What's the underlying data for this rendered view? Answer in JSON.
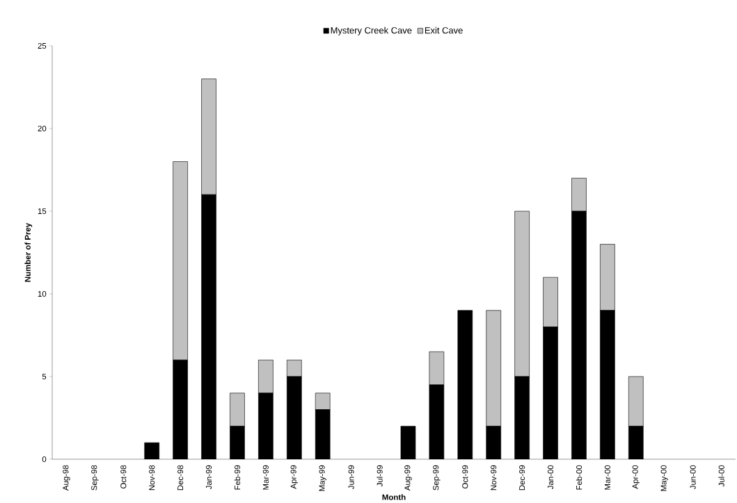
{
  "chart_data": {
    "type": "bar",
    "stacked": true,
    "xlabel": "Month",
    "ylabel": "Number of Prey",
    "categories": [
      "Aug-98",
      "Sep-98",
      "Oct-98",
      "Nov-98",
      "Dec-98",
      "Jan-99",
      "Feb-99",
      "Mar-99",
      "Apr-99",
      "May-99",
      "Jun-99",
      "Jul-99",
      "Aug-99",
      "Sep-99",
      "Oct-99",
      "Nov-99",
      "Dec-99",
      "Jan-00",
      "Feb-00",
      "Mar-00",
      "Apr-00",
      "May-00",
      "Jun-00",
      "Jul-00"
    ],
    "series": [
      {
        "name": "Mystery Creek Cave",
        "color": "#000000",
        "values": [
          0,
          0,
          0,
          1,
          6,
          16,
          2,
          4,
          5,
          3,
          0,
          0,
          2,
          4.5,
          9,
          2,
          5,
          8,
          15,
          9,
          2,
          0,
          0,
          0
        ]
      },
      {
        "name": "Exit Cave",
        "color": "#c0c0c0",
        "values": [
          0,
          0,
          0,
          0,
          12,
          7,
          2,
          2,
          1,
          1,
          0,
          0,
          0,
          2,
          0,
          7,
          10,
          3,
          2,
          4,
          3,
          0,
          0,
          0
        ]
      }
    ],
    "ylim": [
      0,
      25
    ],
    "yticks": [
      0,
      5,
      10,
      15,
      20,
      25
    ],
    "legend": "top"
  }
}
